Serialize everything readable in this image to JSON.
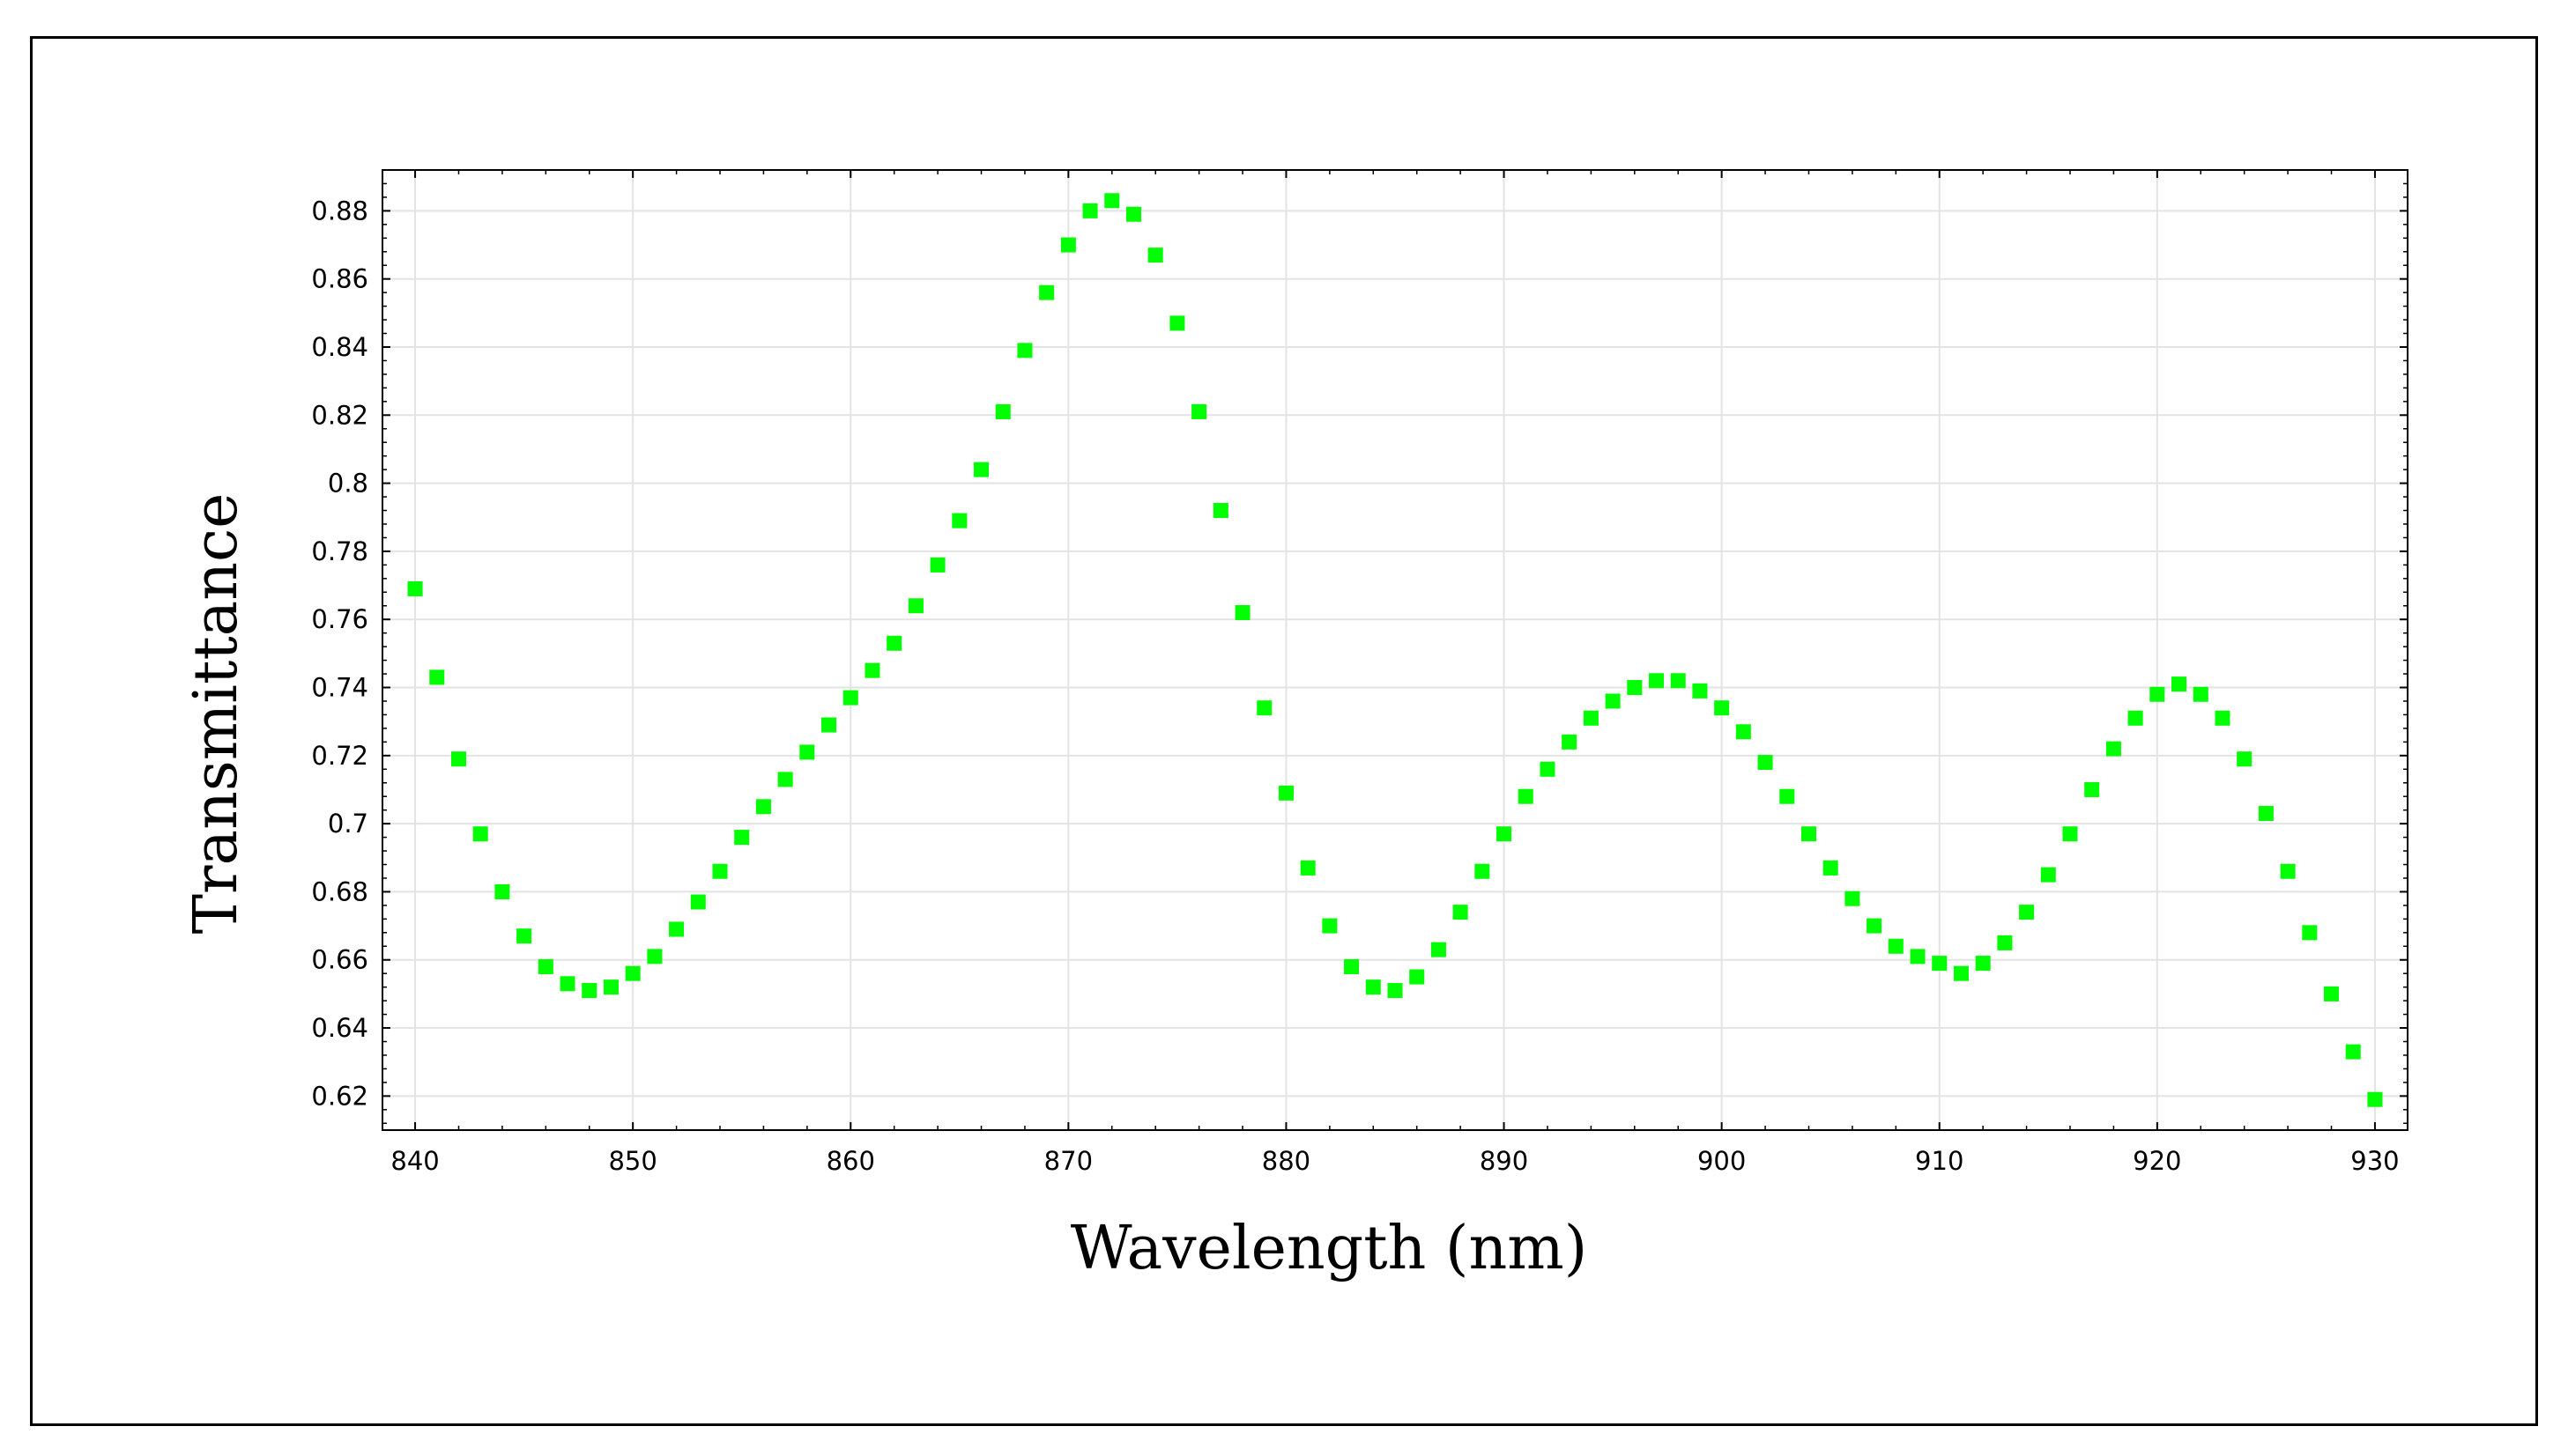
{
  "chart_data": {
    "type": "scatter",
    "xlabel": "Wavelength (nm)",
    "ylabel": "Transmittance",
    "xlim": [
      838.5,
      931.5
    ],
    "ylim": [
      0.61,
      0.892
    ],
    "x_ticks": [
      "840",
      "850",
      "860",
      "870",
      "880",
      "890",
      "900",
      "910",
      "920",
      "930"
    ],
    "y_ticks": [
      "0.62",
      "0.64",
      "0.66",
      "0.68",
      "0.7",
      "0.72",
      "0.74",
      "0.76",
      "0.78",
      "0.8",
      "0.82",
      "0.84",
      "0.86",
      "0.88"
    ],
    "grid": true,
    "legend": "none",
    "marker_color": "#00ff00",
    "marker_shape": "square",
    "series": [
      {
        "x": [
          840,
          841,
          842,
          843,
          844,
          845,
          846,
          847,
          848,
          849,
          850,
          851,
          852,
          853,
          854,
          855,
          856,
          857,
          858,
          859,
          860,
          861,
          862,
          863,
          864,
          865,
          866,
          867,
          868,
          869,
          870,
          871,
          872,
          873,
          874,
          875,
          876,
          877,
          878,
          879,
          880,
          881,
          882,
          883,
          884,
          885,
          886,
          887,
          888,
          889,
          890,
          891,
          892,
          893,
          894,
          895,
          896,
          897,
          898,
          899,
          900,
          901,
          902,
          903,
          904,
          905,
          906,
          907,
          908,
          909,
          910,
          911,
          912,
          913,
          914,
          915,
          916,
          917,
          918,
          919,
          920,
          921,
          922,
          923,
          924,
          925,
          926,
          927,
          928,
          929,
          930
        ],
        "y": [
          0.769,
          0.743,
          0.719,
          0.697,
          0.68,
          0.667,
          0.658,
          0.653,
          0.651,
          0.652,
          0.656,
          0.661,
          0.669,
          0.677,
          0.686,
          0.696,
          0.705,
          0.713,
          0.721,
          0.729,
          0.737,
          0.745,
          0.753,
          0.764,
          0.776,
          0.789,
          0.804,
          0.821,
          0.839,
          0.856,
          0.87,
          0.88,
          0.883,
          0.879,
          0.867,
          0.847,
          0.821,
          0.792,
          0.762,
          0.734,
          0.709,
          0.687,
          0.67,
          0.658,
          0.652,
          0.651,
          0.655,
          0.663,
          0.674,
          0.686,
          0.697,
          0.708,
          0.716,
          0.724,
          0.731,
          0.736,
          0.74,
          0.742,
          0.742,
          0.739,
          0.734,
          0.727,
          0.718,
          0.708,
          0.697,
          0.687,
          0.678,
          0.67,
          0.664,
          0.661,
          0.659,
          0.656,
          0.659,
          0.665,
          0.674,
          0.685,
          0.697,
          0.71,
          0.722,
          0.731,
          0.738,
          0.741,
          0.738,
          0.731,
          0.719,
          0.703,
          0.686,
          0.668,
          0.65,
          0.633,
          0.619
        ]
      }
    ]
  }
}
